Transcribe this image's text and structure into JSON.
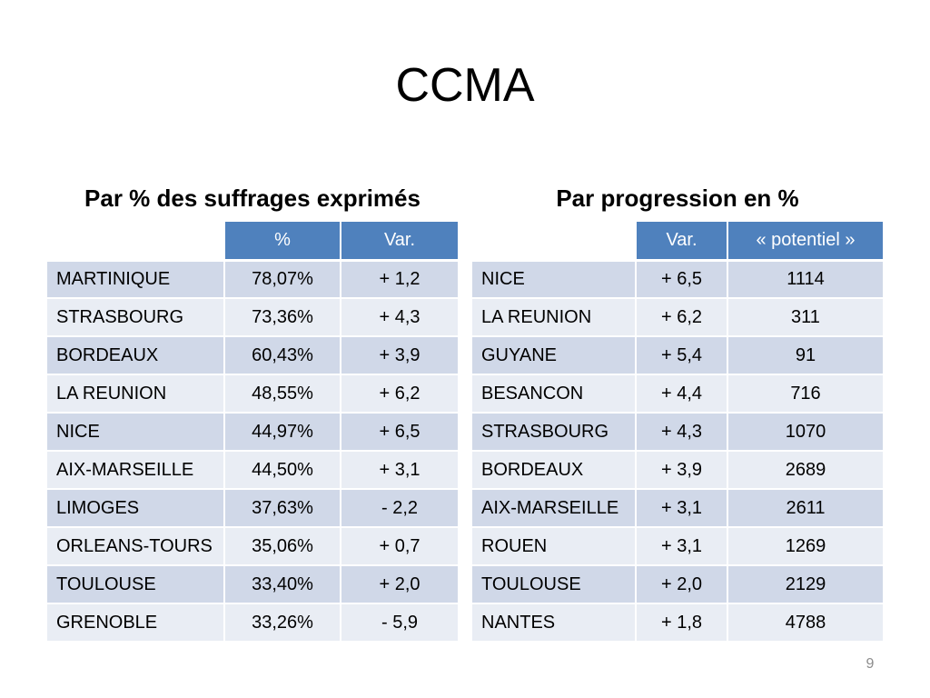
{
  "slide": {
    "title": "CCMA",
    "page_number": "9"
  },
  "left_table": {
    "heading": "Par % des suffrages exprimés",
    "columns": [
      "",
      "%",
      "Var."
    ],
    "rows": [
      [
        "MARTINIQUE",
        "78,07%",
        "+ 1,2"
      ],
      [
        "STRASBOURG",
        "73,36%",
        "+ 4,3"
      ],
      [
        "BORDEAUX",
        "60,43%",
        "+ 3,9"
      ],
      [
        "LA REUNION",
        "48,55%",
        "+ 6,2"
      ],
      [
        "NICE",
        "44,97%",
        "+ 6,5"
      ],
      [
        "AIX-MARSEILLE",
        "44,50%",
        "+ 3,1"
      ],
      [
        "LIMOGES",
        "37,63%",
        "- 2,2"
      ],
      [
        "ORLEANS-TOURS",
        "35,06%",
        "+ 0,7"
      ],
      [
        "TOULOUSE",
        "33,40%",
        "+ 2,0"
      ],
      [
        "GRENOBLE",
        "33,26%",
        "- 5,9"
      ]
    ]
  },
  "right_table": {
    "heading": "Par progression en %",
    "columns": [
      "",
      "Var.",
      "« potentiel »"
    ],
    "rows": [
      [
        "NICE",
        "+ 6,5",
        "1114"
      ],
      [
        "LA REUNION",
        "+ 6,2",
        "311"
      ],
      [
        "GUYANE",
        "+ 5,4",
        "91"
      ],
      [
        "BESANCON",
        "+ 4,4",
        "716"
      ],
      [
        "STRASBOURG",
        "+ 4,3",
        "1070"
      ],
      [
        "BORDEAUX",
        "+ 3,9",
        "2689"
      ],
      [
        "AIX-MARSEILLE",
        "+ 3,1",
        "2611"
      ],
      [
        "ROUEN",
        "+ 3,1",
        "1269"
      ],
      [
        "TOULOUSE",
        "+ 2,0",
        "2129"
      ],
      [
        "NANTES",
        "+ 1,8",
        "4788"
      ]
    ]
  },
  "colors": {
    "header_blue": "#4f81bd",
    "row_dark": "#d0d8e8",
    "row_light": "#e9edf4",
    "page_number_grey": "#8c8c8c"
  }
}
